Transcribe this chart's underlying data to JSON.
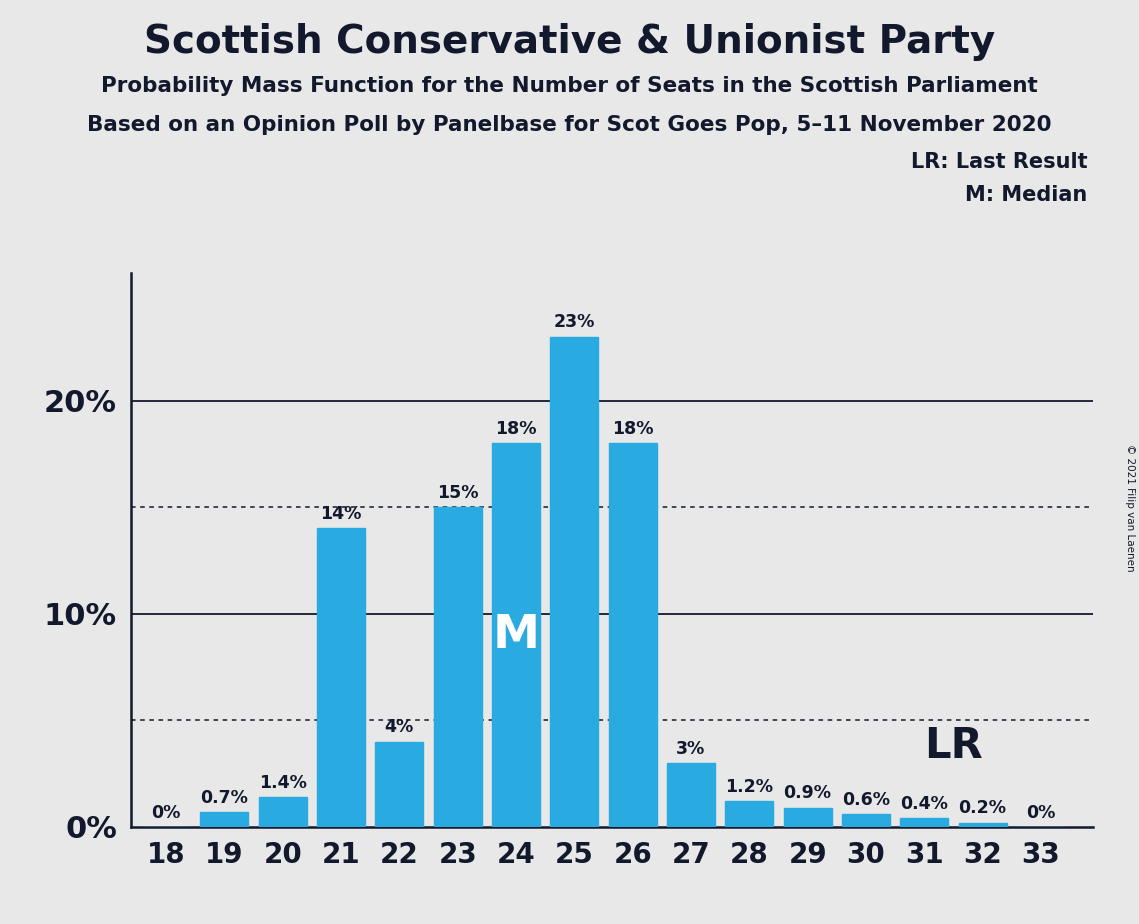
{
  "title": "Scottish Conservative & Unionist Party",
  "subtitle1": "Probability Mass Function for the Number of Seats in the Scottish Parliament",
  "subtitle2": "Based on an Opinion Poll by Panelbase for Scot Goes Pop, 5–11 November 2020",
  "copyright": "© 2021 Filip van Laenen",
  "seats": [
    18,
    19,
    20,
    21,
    22,
    23,
    24,
    25,
    26,
    27,
    28,
    29,
    30,
    31,
    32,
    33
  ],
  "probabilities": [
    0.0,
    0.7,
    1.4,
    14.0,
    4.0,
    15.0,
    18.0,
    23.0,
    18.0,
    3.0,
    1.2,
    0.9,
    0.6,
    0.4,
    0.2,
    0.0
  ],
  "labels": [
    "0%",
    "0.7%",
    "1.4%",
    "14%",
    "4%",
    "15%",
    "18%",
    "23%",
    "18%",
    "3%",
    "1.2%",
    "0.9%",
    "0.6%",
    "0.4%",
    "0.2%",
    "0%"
  ],
  "bar_color": "#29ABE2",
  "background_color": "#E8E8E8",
  "text_color": "#12192c",
  "median_seat": 24,
  "lr_seat": 31,
  "yticks": [
    0,
    10,
    20
  ],
  "dotted_lines": [
    5,
    15
  ],
  "ylim": [
    0,
    26
  ],
  "legend_lr": "LR: Last Result",
  "legend_m": "M: Median",
  "bar_width": 0.82
}
